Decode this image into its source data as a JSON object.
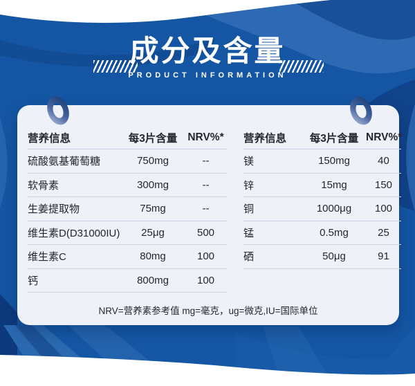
{
  "header": {
    "title": "成分及含量",
    "subtitle": "PRODUCT INFORMATION"
  },
  "table": {
    "columns": [
      "营养信息",
      "每3片含量",
      "NRV%*"
    ],
    "left_rows": [
      {
        "name": "硫酸氨基葡萄糖",
        "amount": "750mg",
        "nrv": "--"
      },
      {
        "name": "软骨素",
        "amount": "300mg",
        "nrv": "--"
      },
      {
        "name": "生姜提取物",
        "amount": "75mg",
        "nrv": "--"
      },
      {
        "name": "维生素D(D31000IU)",
        "amount": "25μg",
        "nrv": "500"
      },
      {
        "name": "维生素C",
        "amount": "80mg",
        "nrv": "100"
      },
      {
        "name": "钙",
        "amount": "800mg",
        "nrv": "100"
      }
    ],
    "right_rows": [
      {
        "name": "镁",
        "amount": "150mg",
        "nrv": "40"
      },
      {
        "name": "锌",
        "amount": "15mg",
        "nrv": "150"
      },
      {
        "name": "铜",
        "amount": "1000μg",
        "nrv": "100"
      },
      {
        "name": "锰",
        "amount": "0.5mg",
        "nrv": "25"
      },
      {
        "name": "硒",
        "amount": "50μg",
        "nrv": "91"
      }
    ],
    "footnote": "NRV=营养素参考值 mg=毫克，ug=微克,IU=国际单位"
  },
  "colors": {
    "background_blue": "#1456a3",
    "light_wave_blue": "#2d6ab3",
    "dark_swirl_blue": "#0e3c80",
    "card_background": "#eef1f8",
    "text_dark": "#26262e",
    "divider": "#c9d6e8",
    "white": "#ffffff"
  }
}
